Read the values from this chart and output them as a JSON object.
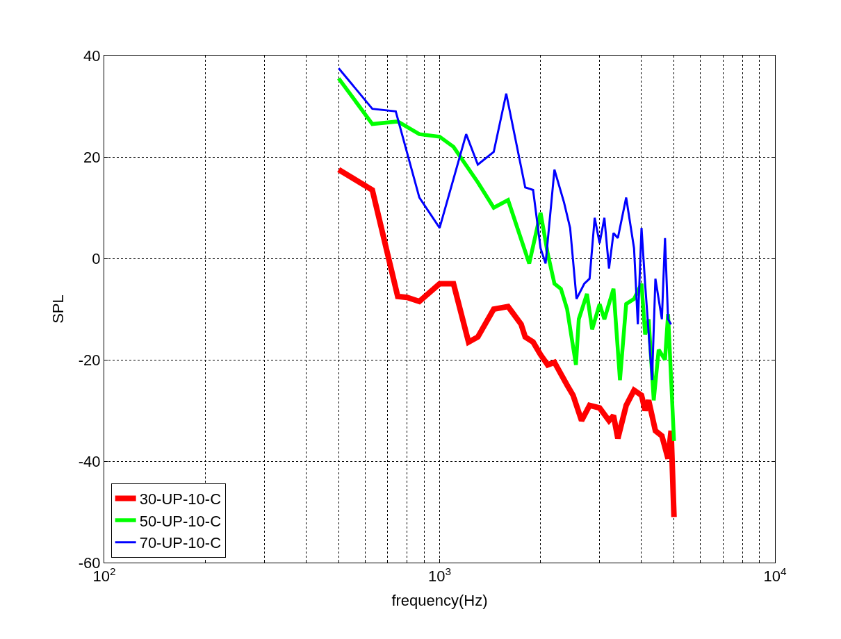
{
  "chart_data": {
    "type": "line",
    "xlabel": "frequency(Hz)",
    "ylabel": "SPL",
    "log": "x",
    "grid": true,
    "legend": "bottom left",
    "line_style": "solid",
    "marker": "none",
    "xlim": [
      100,
      10000
    ],
    "xticks": [
      {
        "value": 100,
        "label": "10$^{2}$"
      },
      {
        "value": 1000,
        "label": "10$^{3}$"
      },
      {
        "value": 10000,
        "label": "10$^{4}$"
      }
    ],
    "ylim": [
      -60,
      40
    ],
    "yticks": [
      -60,
      -40,
      -20,
      0,
      20,
      40
    ],
    "series": [
      {
        "name": "30-UP-10-C",
        "color": "#ff0000",
        "x": [
          500,
          630,
          750,
          800,
          870,
          1000,
          1100,
          1220,
          1300,
          1450,
          1600,
          1750,
          1800,
          1900,
          2000,
          2100,
          2200,
          2400,
          2500,
          2650,
          2800,
          3000,
          3200,
          3300,
          3400,
          3600,
          3800,
          4000,
          4100,
          4200,
          4400,
          4600,
          4800,
          4900,
          5000
        ],
        "values": [
          17.5,
          13.5,
          -7.5,
          -7.7,
          -8.5,
          -5,
          -5,
          -16.5,
          -15.5,
          -10,
          -9.5,
          -13,
          -15.5,
          -16.5,
          -19,
          -21,
          -20.5,
          -25,
          -27,
          -32,
          -29,
          -29.5,
          -32,
          -31,
          -35.5,
          -29,
          -26,
          -27,
          -30,
          -28,
          -34,
          -35,
          -39.5,
          -34,
          -51
        ]
      },
      {
        "name": "50-UP-10-C",
        "color": "#00ff00",
        "x": [
          500,
          630,
          750,
          870,
          1000,
          1100,
          1300,
          1450,
          1600,
          1850,
          2000,
          2100,
          2200,
          2300,
          2400,
          2550,
          2600,
          2750,
          2850,
          3000,
          3100,
          3300,
          3450,
          3600,
          3800,
          4000,
          4100,
          4200,
          4350,
          4500,
          4700,
          4800,
          5000
        ],
        "values": [
          35.5,
          26.5,
          27,
          24.5,
          24,
          22,
          15,
          10,
          11.5,
          -1,
          9,
          1,
          -5,
          -6,
          -10,
          -21,
          -12,
          -7,
          -14,
          -9,
          -12,
          -6,
          -24,
          -9,
          -8,
          -5,
          -15,
          -12,
          -28,
          -18,
          -20,
          -11,
          -36
        ]
      },
      {
        "name": "70-UP-10-C",
        "color": "#0000ff",
        "x": [
          500,
          630,
          740,
          870,
          1000,
          1200,
          1300,
          1450,
          1580,
          1800,
          1900,
          2000,
          2070,
          2200,
          2350,
          2450,
          2560,
          2700,
          2800,
          2900,
          3000,
          3100,
          3200,
          3300,
          3400,
          3600,
          3800,
          3900,
          4000,
          4100,
          4300,
          4400,
          4600,
          4700,
          4800,
          4900
        ],
        "values": [
          37.5,
          29.5,
          29,
          12,
          6,
          24.5,
          18.5,
          21,
          32.5,
          14,
          13.5,
          2,
          -1,
          17.5,
          11,
          6,
          -8,
          -5,
          -4,
          8,
          3,
          8,
          -2,
          5,
          4,
          12,
          2,
          -13,
          6,
          -5,
          -24,
          -4,
          -12,
          4,
          -12,
          -13
        ]
      }
    ]
  }
}
